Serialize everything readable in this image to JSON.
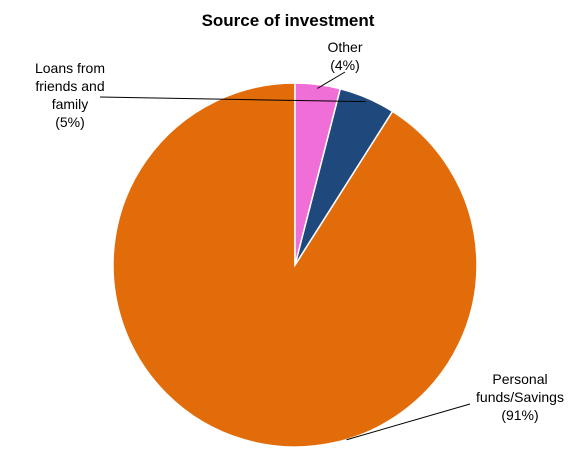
{
  "chart_data": {
    "type": "pie",
    "title": "Source of investment",
    "start_angle_deg": 0,
    "direction": "counterclockwise",
    "slices": [
      {
        "label_lines": [
          "Personal",
          "funds/Savings",
          "(91%)"
        ],
        "value": 91,
        "color": "#E36C0A"
      },
      {
        "label_lines": [
          "Loans from",
          "friends and",
          "family",
          "(5%)"
        ],
        "value": 5,
        "color": "#1F497D"
      },
      {
        "label_lines": [
          "Other",
          "(4%)"
        ],
        "value": 4,
        "color": "#F06ED8"
      }
    ]
  }
}
